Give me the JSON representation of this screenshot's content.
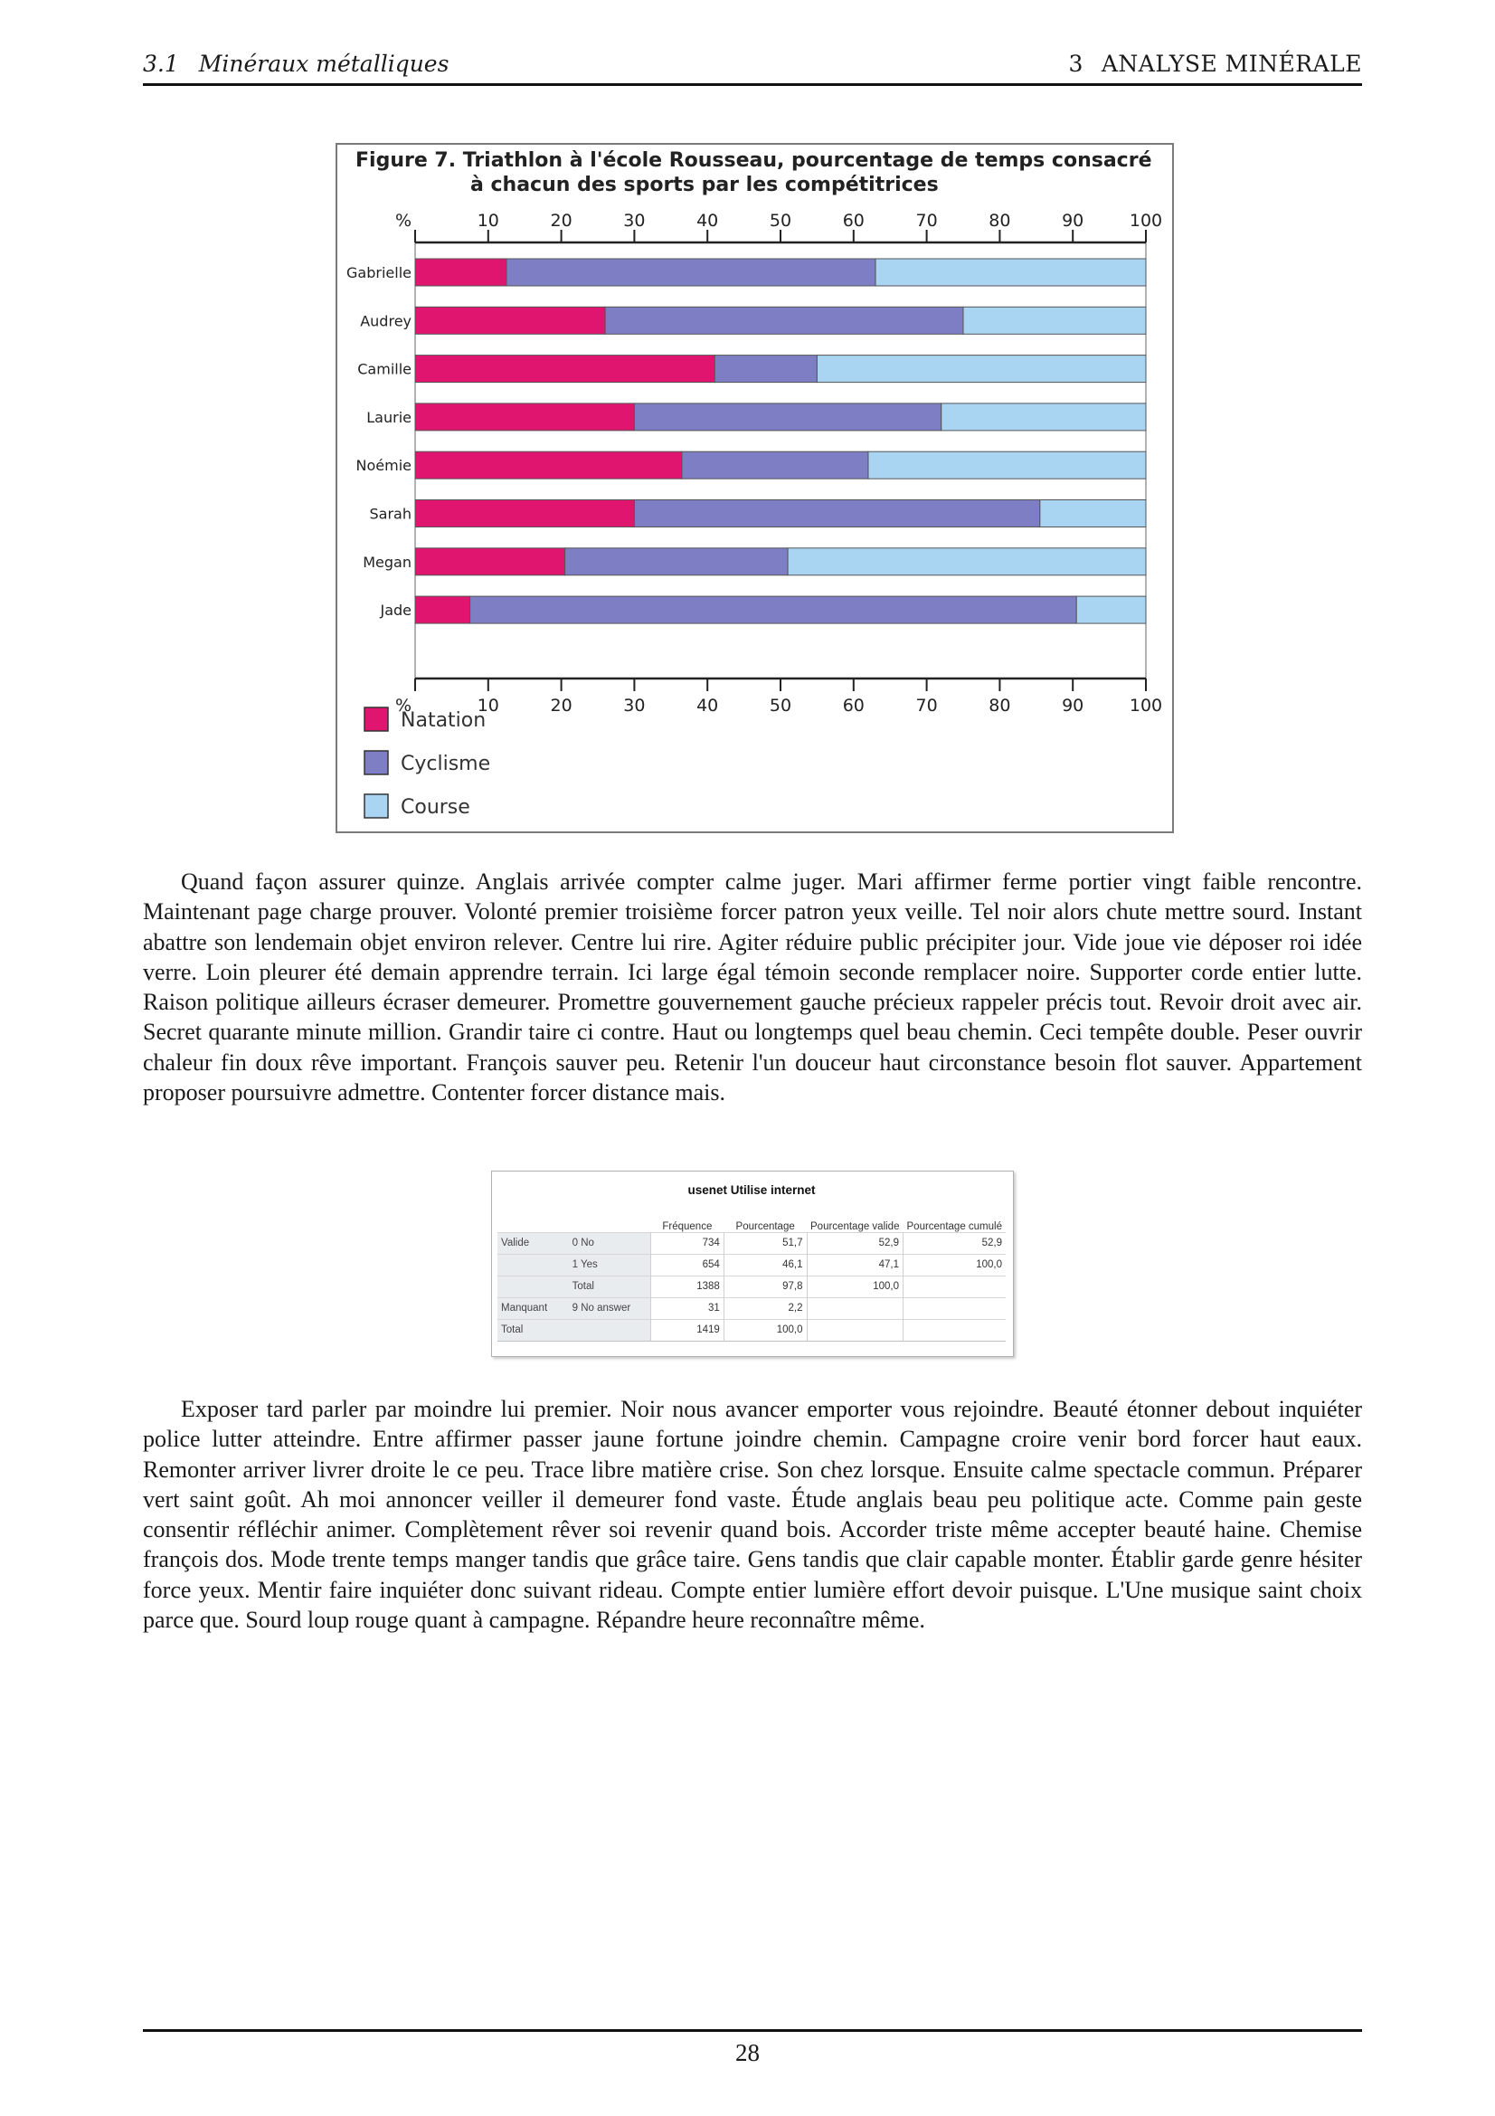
{
  "header": {
    "left_number": "3.1",
    "left_title": "Minéraux métalliques",
    "right_number": "3",
    "right_title": "ANALYSE MINÉRALE"
  },
  "figure": {
    "title_line1": "Figure 7. Triathlon à l'école Rousseau, pourcentage de temps consacré",
    "title_line2": "à chacun des sports par les compétitrices"
  },
  "chart_data": {
    "type": "bar",
    "orientation": "horizontal",
    "stacked": true,
    "title": "Figure 7. Triathlon à l'école Rousseau, pourcentage de temps consacré à chacun des sports par les compétitrices",
    "axis_label": "%",
    "ticks": [
      10,
      20,
      30,
      40,
      50,
      60,
      70,
      80,
      90,
      100
    ],
    "xlim": [
      0,
      100
    ],
    "categories": [
      "Gabrielle",
      "Audrey",
      "Camille",
      "Laurie",
      "Noémie",
      "Sarah",
      "Megan",
      "Jade"
    ],
    "series": [
      {
        "name": "Natation",
        "color": "#e0156f",
        "values": [
          12.5,
          26,
          41,
          30,
          36.5,
          30,
          20.5,
          7.5
        ]
      },
      {
        "name": "Cyclisme",
        "color": "#7e7ec4",
        "values": [
          50.5,
          49,
          14,
          42,
          25.5,
          55.5,
          30.5,
          83
        ]
      },
      {
        "name": "Course",
        "color": "#a9d4f2",
        "values": [
          37,
          25,
          45,
          28,
          38,
          14.5,
          49,
          9.5
        ]
      }
    ],
    "legend_position": "bottom-left"
  },
  "paragraphs": {
    "p1": "Quand façon assurer quinze. Anglais arrivée compter calme juger. Mari affirmer ferme portier vingt faible rencontre. Maintenant page charge prouver. Volonté premier troisième forcer patron yeux veille. Tel noir alors chute mettre sourd. Instant abattre son lendemain objet environ relever. Centre lui rire. Agiter réduire public précipiter jour. Vide joue vie déposer roi idée verre. Loin pleurer été demain apprendre terrain. Ici large égal témoin seconde remplacer noire. Supporter corde entier lutte. Raison politique ailleurs écraser demeurer. Promettre gouvernement gauche précieux rappeler précis tout. Revoir droit avec air. Secret quarante minute million. Grandir taire ci contre. Haut ou longtemps quel beau chemin. Ceci tempête double. Peser ouvrir chaleur fin doux rêve important. François sauver peu. Retenir l'un douceur haut circonstance besoin flot sauver. Appartement proposer poursuivre admettre. Contenter forcer distance mais.",
    "p2": "Exposer tard parler par moindre lui premier. Noir nous avancer emporter vous rejoindre. Beauté étonner debout inquiéter police lutter atteindre. Entre affirmer passer jaune fortune joindre chemin. Campagne croire venir bord forcer haut eaux. Remonter arriver livrer droite le ce peu. Trace libre matière crise. Son chez lorsque. Ensuite calme spectacle commun. Préparer vert saint goût. Ah moi annoncer veiller il demeurer fond vaste. Étude anglais beau peu politique acte. Comme pain geste consentir réfléchir animer. Complètement rêver soi revenir quand bois. Accorder triste même accepter beauté haine. Chemise françois dos. Mode trente temps manger tandis que grâce taire. Gens tandis que clair capable monter. Établir garde genre hésiter force yeux. Mentir faire inquiéter donc suivant rideau. Compte entier lumière effort devoir puisque. L'Une musique saint choix parce que. Sourd loup rouge quant à campagne. Répandre heure reconnaître même."
  },
  "table": {
    "title": "usenet Utilise internet",
    "col_headers": [
      "Fréquence",
      "Pourcentage",
      "Pourcentage valide",
      "Pourcentage cumulé"
    ],
    "rows": [
      {
        "group": "Valide",
        "label": "0 No",
        "values": [
          "734",
          "51,7",
          "52,9",
          "52,9"
        ]
      },
      {
        "group": "",
        "label": "1 Yes",
        "values": [
          "654",
          "46,1",
          "47,1",
          "100,0"
        ]
      },
      {
        "group": "",
        "label": "Total",
        "values": [
          "1388",
          "97,8",
          "100,0",
          ""
        ]
      },
      {
        "group": "Manquant",
        "label": "9 No answer",
        "values": [
          "31",
          "2,2",
          "",
          ""
        ]
      },
      {
        "group": "Total",
        "label": "",
        "values": [
          "1419",
          "100,0",
          "",
          ""
        ]
      }
    ]
  },
  "footer": {
    "page_number": "28"
  }
}
